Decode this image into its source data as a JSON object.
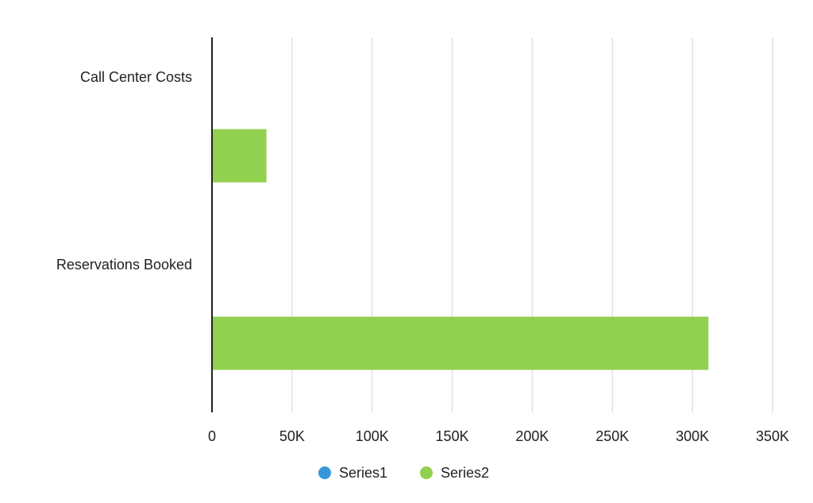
{
  "chart_data": {
    "type": "bar",
    "orientation": "horizontal",
    "categories": [
      "Call Center Costs",
      "Reservations Booked"
    ],
    "series": [
      {
        "name": "Series1",
        "values": [
          0,
          0
        ],
        "color": "#3498db"
      },
      {
        "name": "Series2",
        "values": [
          34000,
          310000
        ],
        "color": "#92d050"
      }
    ],
    "x_ticks": [
      0,
      50000,
      100000,
      150000,
      200000,
      250000,
      300000,
      350000
    ],
    "x_tick_labels": [
      "0",
      "50K",
      "100K",
      "150K",
      "200K",
      "250K",
      "300K",
      "350K"
    ],
    "xlim": [
      0,
      350000
    ],
    "grid": true,
    "legend_position": "bottom"
  }
}
